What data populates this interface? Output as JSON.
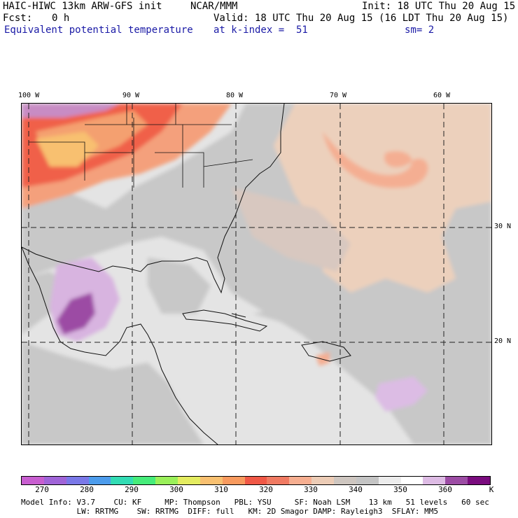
{
  "header": {
    "model": "HAIC-HIWC 13km ARW-GFS init",
    "org": "NCAR/MMM",
    "init": "Init: 18 UTC Thu 20 Aug 15",
    "fcst_label": "Fcst:",
    "fcst_value": "0 h",
    "valid": "Valid: 18 UTC Thu 20 Aug 15 (16 LDT Thu 20 Aug 15)",
    "field": "Equivalent potential temperature",
    "level": "at k-index =  51",
    "smooth": "sm= 2"
  },
  "map": {
    "lon_labels": [
      "100 W",
      "90 W",
      "80 W",
      "70 W",
      "60 W"
    ],
    "lat_labels": [
      "30 N",
      "20 N"
    ]
  },
  "colorbar": {
    "unit": "K",
    "tick_labels": [
      "270",
      "280",
      "290",
      "300",
      "310",
      "320",
      "330",
      "340",
      "350",
      "360"
    ],
    "colors": [
      "#c85ed0",
      "#a064d8",
      "#7a78e8",
      "#4c9cec",
      "#32dcb4",
      "#46ec7a",
      "#9af05a",
      "#e4ec60",
      "#f8c070",
      "#f89a5e",
      "#f05846",
      "#f07a62",
      "#f6ae90",
      "#ecccb6",
      "#cec6c0",
      "#c4c4c4",
      "#ececec",
      "#ffffff",
      "#ddbbe4",
      "#9c4ca4",
      "#7a0c7e"
    ]
  },
  "footer": {
    "line1": "Model Info: V3.7    CU: KF     MP: Thompson   PBL: YSU     SF: Noah LSM    13 km   51 levels   60 sec",
    "line2": "            LW: RRTMG    SW: RRTMG  DIFF: full   KM: 2D Smagor DAMP: Rayleigh3  SFLAY: MM5"
  }
}
